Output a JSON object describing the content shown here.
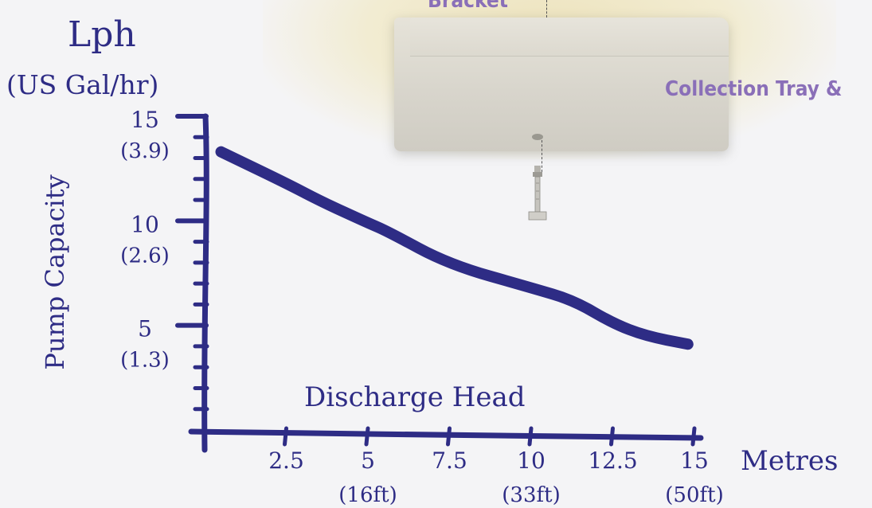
{
  "photo": {
    "bracket_label": "Bracket",
    "tray_label": "Collection Tray &"
  },
  "chart_data": {
    "type": "line",
    "title": "Lph",
    "subtitle": "(US Gal/hr)",
    "ylabel": "Pump Capacity",
    "xlabel": "Metres",
    "annotation": "Discharge Head",
    "xlim": [
      0,
      15
    ],
    "ylim": [
      0,
      15
    ],
    "x_ticks": [
      {
        "value": 2.5,
        "label": "2.5",
        "sub": ""
      },
      {
        "value": 5,
        "label": "5",
        "sub": "(16ft)"
      },
      {
        "value": 7.5,
        "label": "7.5",
        "sub": ""
      },
      {
        "value": 10,
        "label": "10",
        "sub": "(33ft)"
      },
      {
        "value": 12.5,
        "label": "12.5",
        "sub": ""
      },
      {
        "value": 15,
        "label": "15",
        "sub": "(50ft)"
      }
    ],
    "y_ticks": [
      {
        "value": 5,
        "label": "5",
        "sub": "(1.3)"
      },
      {
        "value": 10,
        "label": "10",
        "sub": "(2.6)"
      },
      {
        "value": 15,
        "label": "15",
        "sub": "(3.9)"
      }
    ],
    "series": [
      {
        "x": [
          0.5,
          2.5,
          3.6,
          5,
          5.6,
          7.5,
          10,
          11.3,
          12.5,
          13.5,
          14.8
        ],
        "y": [
          13.3,
          11.8,
          10.9,
          9.9,
          9.5,
          7.9,
          6.8,
          6.2,
          5.1,
          4.5,
          4.1
        ]
      }
    ],
    "colors": {
      "ink": "#2e2c85"
    },
    "grid": false
  }
}
